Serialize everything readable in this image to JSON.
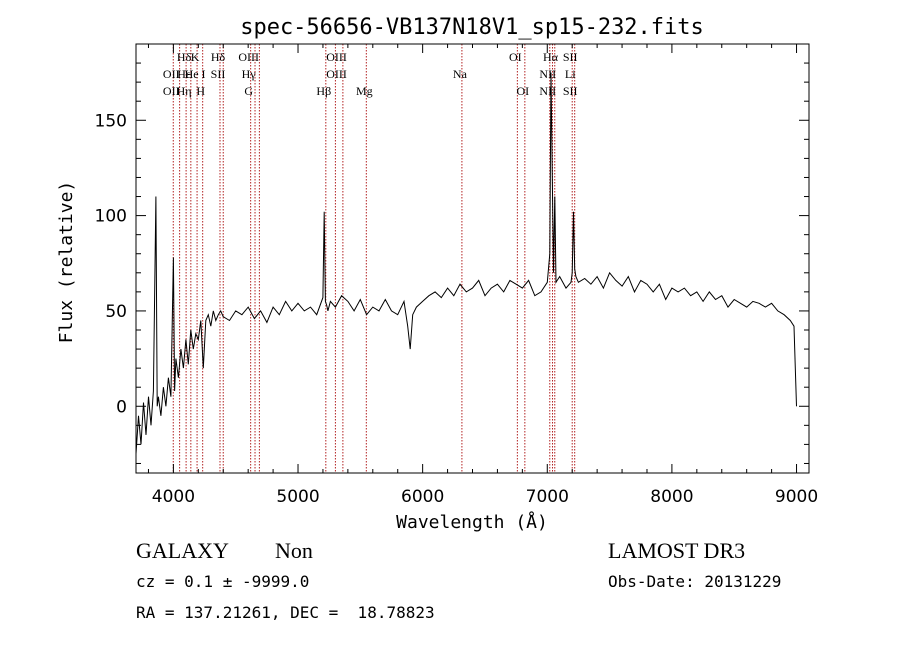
{
  "chart_data": {
    "type": "line",
    "title": "spec-56656-VB137N18V1_sp15-232.fits",
    "xlabel": "Wavelength (Å)",
    "ylabel": "Flux (relative)",
    "xlim": [
      3700,
      9100
    ],
    "ylim": [
      -35,
      190
    ],
    "xticks": [
      4000,
      5000,
      6000,
      7000,
      8000,
      9000
    ],
    "yticks": [
      0,
      50,
      100,
      150
    ],
    "grid": false,
    "series": [
      {
        "name": "spectrum",
        "x": [
          3700,
          3720,
          3740,
          3760,
          3780,
          3800,
          3820,
          3840,
          3860,
          3870,
          3880,
          3900,
          3920,
          3940,
          3960,
          3980,
          4000,
          4010,
          4020,
          4040,
          4060,
          4080,
          4100,
          4120,
          4140,
          4160,
          4180,
          4200,
          4220,
          4240,
          4260,
          4280,
          4300,
          4320,
          4340,
          4360,
          4380,
          4400,
          4450,
          4500,
          4550,
          4600,
          4650,
          4700,
          4750,
          4800,
          4850,
          4900,
          4950,
          5000,
          5050,
          5100,
          5150,
          5200,
          5210,
          5220,
          5230,
          5240,
          5260,
          5300,
          5350,
          5400,
          5450,
          5500,
          5550,
          5600,
          5650,
          5700,
          5750,
          5800,
          5850,
          5880,
          5900,
          5920,
          5950,
          6000,
          6050,
          6100,
          6150,
          6200,
          6250,
          6300,
          6350,
          6400,
          6450,
          6500,
          6550,
          6600,
          6650,
          6700,
          6750,
          6800,
          6850,
          6900,
          6950,
          7000,
          7020,
          7030,
          7040,
          7050,
          7060,
          7070,
          7080,
          7100,
          7150,
          7190,
          7200,
          7210,
          7220,
          7230,
          7250,
          7300,
          7350,
          7400,
          7450,
          7500,
          7550,
          7600,
          7650,
          7700,
          7750,
          7800,
          7850,
          7900,
          7950,
          8000,
          8050,
          8100,
          8150,
          8200,
          8250,
          8300,
          8350,
          8400,
          8450,
          8500,
          8550,
          8600,
          8650,
          8700,
          8750,
          8800,
          8850,
          8900,
          8950,
          8980,
          8990,
          9000
        ],
        "y": [
          -25,
          -5,
          -20,
          2,
          -15,
          5,
          -10,
          8,
          110,
          0,
          5,
          -5,
          10,
          0,
          15,
          5,
          78,
          8,
          25,
          15,
          30,
          20,
          35,
          22,
          40,
          30,
          38,
          35,
          45,
          20,
          45,
          48,
          42,
          50,
          45,
          48,
          50,
          47,
          45,
          50,
          48,
          52,
          46,
          50,
          44,
          52,
          48,
          55,
          50,
          54,
          50,
          52,
          48,
          57,
          102,
          55,
          53,
          50,
          55,
          52,
          58,
          55,
          50,
          56,
          48,
          52,
          50,
          56,
          50,
          48,
          55,
          42,
          30,
          48,
          52,
          55,
          58,
          60,
          57,
          62,
          58,
          64,
          60,
          62,
          66,
          58,
          62,
          64,
          60,
          66,
          64,
          62,
          66,
          58,
          60,
          65,
          80,
          175,
          120,
          70,
          110,
          65,
          66,
          68,
          62,
          65,
          70,
          102,
          72,
          68,
          65,
          67,
          64,
          68,
          62,
          70,
          66,
          63,
          68,
          60,
          66,
          64,
          60,
          64,
          56,
          62,
          60,
          62,
          58,
          60,
          55,
          60,
          56,
          58,
          52,
          56,
          54,
          52,
          55,
          54,
          52,
          54,
          50,
          48,
          45,
          42,
          20,
          0
        ]
      }
    ],
    "lines": [
      {
        "x": 3999,
        "label": "OII",
        "row": 2
      },
      {
        "x": 3999,
        "label": "OII",
        "row": 3
      },
      {
        "x": 4102,
        "label": "Hδ",
        "row": 1
      },
      {
        "x": 4102,
        "label": "Hε",
        "row": 2
      },
      {
        "x": 4102,
        "label": "Hη",
        "row": 3
      },
      {
        "x": 4190,
        "label": "K",
        "row": 1
      },
      {
        "x": 4190,
        "label": "He I",
        "row": 2
      },
      {
        "x": 4235,
        "label": "H",
        "row": 3
      },
      {
        "x": 4374,
        "label": "Hδ",
        "row": 1
      },
      {
        "x": 4374,
        "label": "SII",
        "row": 2
      },
      {
        "x": 4620,
        "label": "OIII",
        "row": 1
      },
      {
        "x": 4620,
        "label": "Hγ",
        "row": 2
      },
      {
        "x": 4620,
        "label": "G",
        "row": 3
      },
      {
        "x": 5223,
        "label": "Hβ",
        "row": 3
      },
      {
        "x": 5325,
        "label": "OIII",
        "row": 1
      },
      {
        "x": 5325,
        "label": "OIII",
        "row": 2
      },
      {
        "x": 5548,
        "label": "Mg",
        "row": 3
      },
      {
        "x": 6315,
        "label": "Na",
        "row": 2
      },
      {
        "x": 6760,
        "label": "OI",
        "row": 1
      },
      {
        "x": 6820,
        "label": "OI",
        "row": 3
      },
      {
        "x": 7042,
        "label": "Hα",
        "row": 1
      },
      {
        "x": 7020,
        "label": "NII",
        "row": 2
      },
      {
        "x": 7020,
        "label": "NII",
        "row": 3
      },
      {
        "x": 7200,
        "label": "SII",
        "row": 1
      },
      {
        "x": 7200,
        "label": "Li",
        "row": 2
      },
      {
        "x": 7200,
        "label": "SII",
        "row": 3
      }
    ],
    "line_marker_x": [
      3999,
      4050,
      4102,
      4140,
      4190,
      4235,
      4374,
      4400,
      4620,
      4655,
      4690,
      5223,
      5300,
      5360,
      5548,
      6315,
      6760,
      6820,
      7020,
      7042,
      7060,
      7200,
      7220
    ]
  },
  "info": {
    "object_class": "GALAXY",
    "subclass": "Non",
    "survey": "LAMOST DR3",
    "redshift": "cz = 0.1 ± -9999.0",
    "obs_date": "Obs-Date: 20131229",
    "coords": "RA = 137.21261, DEC =  18.78823"
  },
  "colors": {
    "line_marker": "#b22222",
    "spectrum": "#000000"
  }
}
